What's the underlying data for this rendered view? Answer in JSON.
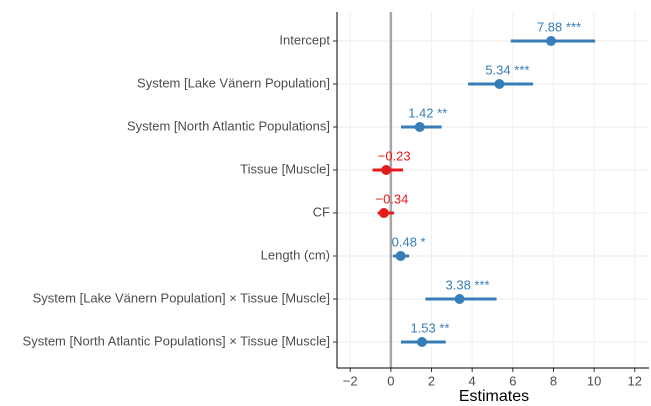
{
  "chart_data": {
    "type": "forest",
    "x_label": "Estimates",
    "categories": [
      "Intercept",
      "System [Lake Vänern Population]",
      "System [North Atlantic Populations]",
      "Tissue [Muscle]",
      "CF",
      "Length (cm)",
      "System [Lake Vänern Population] × Tissue [Muscle]",
      "System [North Atlantic Populations] × Tissue [Muscle]"
    ],
    "values": [
      7.88,
      5.34,
      1.42,
      -0.23,
      -0.34,
      0.48,
      3.38,
      1.53
    ],
    "value_labels": [
      "7.88 ***",
      "5.34 ***",
      "1.42 **",
      "−0.23",
      "−0.34",
      "0.48 *",
      "3.38 ***",
      "1.53 **"
    ],
    "lower": [
      5.9,
      3.8,
      0.5,
      -0.9,
      -0.65,
      0.1,
      1.7,
      0.5
    ],
    "upper": [
      10.05,
      7.0,
      2.5,
      0.6,
      0.15,
      0.9,
      5.2,
      2.7
    ],
    "colors": [
      "#377eb8",
      "#377eb8",
      "#377eb8",
      "#e41a1c",
      "#e41a1c",
      "#377eb8",
      "#377eb8",
      "#377eb8"
    ],
    "reference_line": 0,
    "xlim": [
      -2.65,
      12.7
    ],
    "xticks": [
      {
        "value": -2,
        "label": "−2"
      },
      0,
      2,
      4,
      6,
      8,
      10,
      12
    ],
    "grid": true
  }
}
